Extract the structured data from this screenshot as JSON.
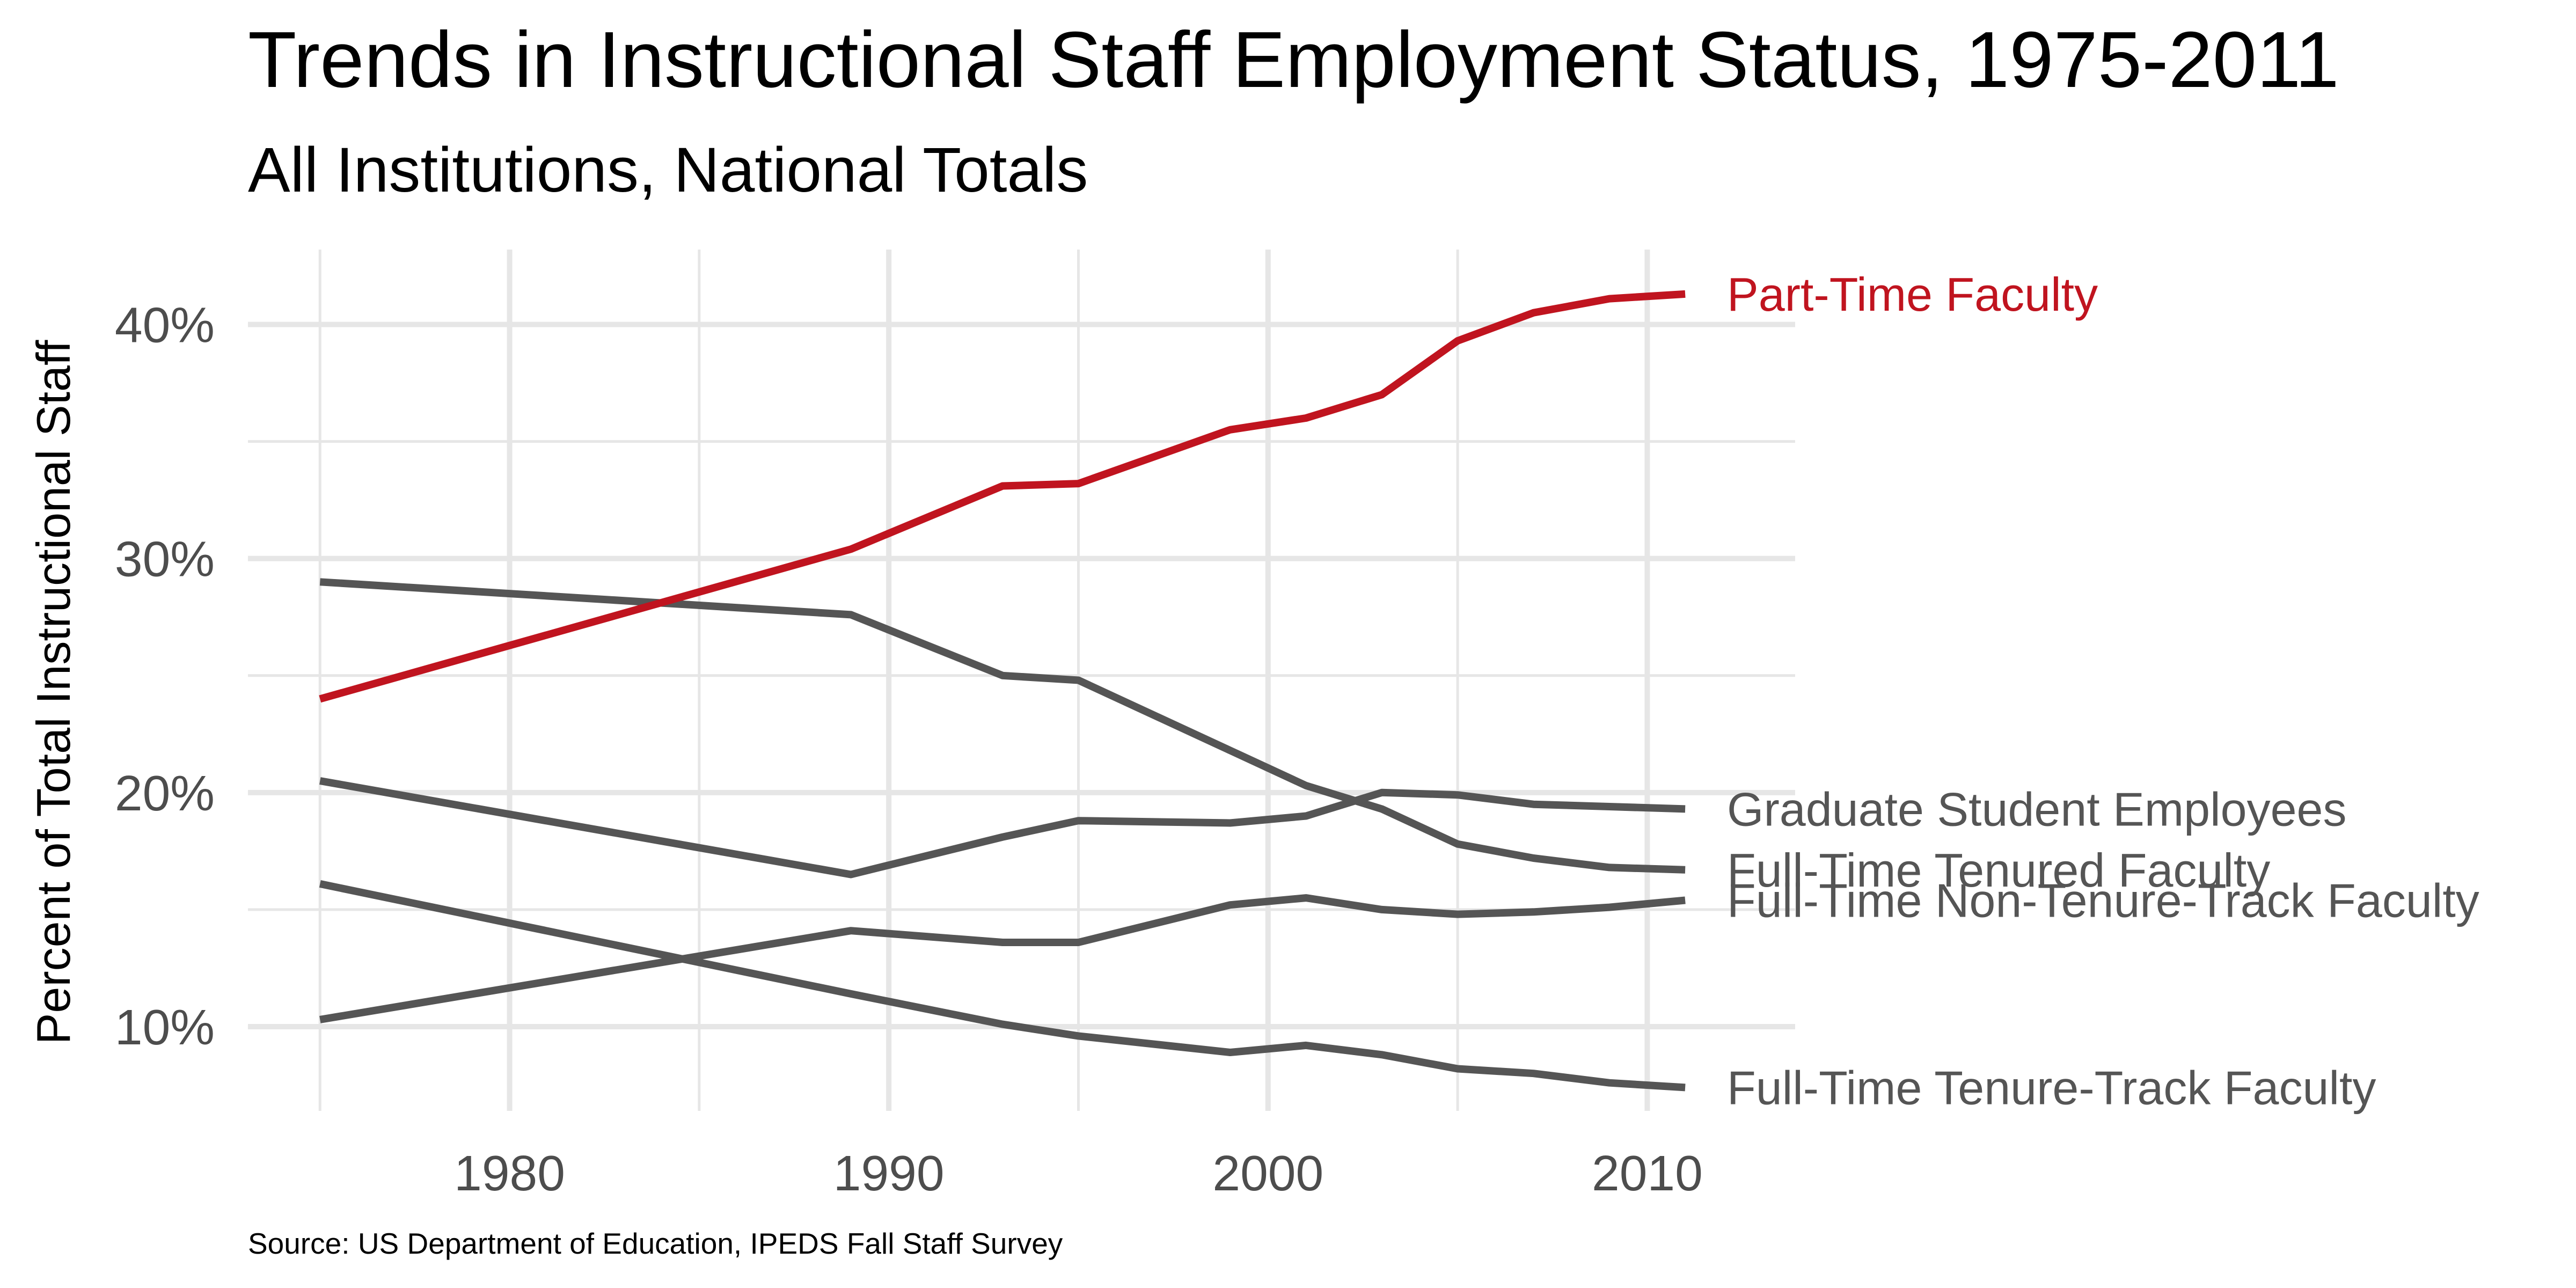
{
  "chart_data": {
    "type": "line",
    "title": "Trends in Instructional Staff Employment Status, 1975-2011",
    "subtitle": "All Institutions, National Totals",
    "ylabel": "Percent of Total Instructional Staff",
    "xlabel": "",
    "caption": "Source: US Department of Education, IPEDS Fall Staff Survey",
    "xlim": [
      1973.1,
      2013.9
    ],
    "ylim": [
      6.4,
      43.2
    ],
    "x_ticks": [
      1980,
      1990,
      2000,
      2010
    ],
    "x_tick_labels": [
      "1980",
      "1990",
      "2000",
      "2010"
    ],
    "x_minor_ticks": [
      1975,
      1985,
      1995,
      2005
    ],
    "y_ticks": [
      10,
      20,
      30,
      40
    ],
    "y_tick_labels": [
      "10%",
      "20%",
      "30%",
      "40%"
    ],
    "y_minor_ticks": [
      15,
      25,
      35
    ],
    "grid": true,
    "legend": "direct labels at line ends",
    "colors": {
      "highlight": "#C0141F",
      "other": "#555555",
      "grid": "#E6E6E6",
      "tick_text": "#4D4D4D",
      "title_text": "#000000"
    },
    "series": [
      {
        "name": "Part-Time Faculty",
        "color": "#C0141F",
        "x": [
          1975,
          1989,
          1993,
          1995,
          1999,
          2001,
          2003,
          2005,
          2007,
          2009,
          2011
        ],
        "y": [
          24.0,
          30.4,
          33.1,
          33.2,
          35.5,
          36.0,
          37.0,
          39.3,
          40.5,
          41.1,
          41.3
        ]
      },
      {
        "name": "Graduate Student Employees",
        "color": "#555555",
        "x": [
          1975,
          1989,
          1993,
          1995,
          1999,
          2001,
          2003,
          2005,
          2007,
          2009,
          2011
        ],
        "y": [
          20.5,
          16.5,
          18.1,
          18.8,
          18.7,
          19.0,
          20.0,
          19.9,
          19.5,
          19.4,
          19.3
        ]
      },
      {
        "name": "Full-Time Tenured Faculty",
        "color": "#555555",
        "x": [
          1975,
          1989,
          1993,
          1995,
          1999,
          2001,
          2003,
          2005,
          2007,
          2009,
          2011
        ],
        "y": [
          29.0,
          27.6,
          25.0,
          24.8,
          21.8,
          20.3,
          19.3,
          17.8,
          17.2,
          16.8,
          16.7
        ]
      },
      {
        "name": "Full-Time Non-Tenure-Track Faculty",
        "color": "#555555",
        "x": [
          1975,
          1989,
          1993,
          1995,
          1999,
          2001,
          2003,
          2005,
          2007,
          2009,
          2011
        ],
        "y": [
          10.3,
          14.1,
          13.6,
          13.6,
          15.2,
          15.5,
          15.0,
          14.8,
          14.9,
          15.1,
          15.4
        ]
      },
      {
        "name": "Full-Time Tenure-Track Faculty",
        "color": "#555555",
        "x": [
          1975,
          1989,
          1993,
          1995,
          1999,
          2001,
          2003,
          2005,
          2007,
          2009,
          2011
        ],
        "y": [
          16.1,
          11.4,
          10.1,
          9.6,
          8.9,
          9.2,
          8.8,
          8.2,
          8.0,
          7.6,
          7.4
        ]
      }
    ]
  }
}
